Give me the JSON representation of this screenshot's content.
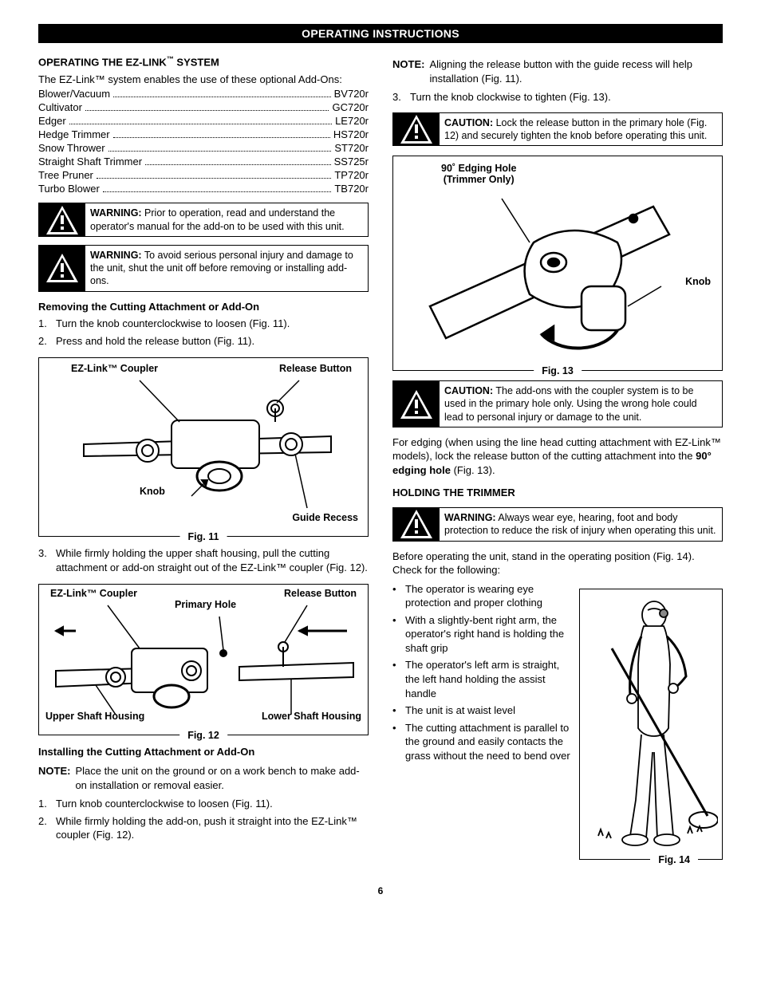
{
  "banner": "OPERATING INSTRUCTIONS",
  "page_number": "6",
  "left": {
    "h1_pre": "OPERATING THE EZ-LINK",
    "h1_suf": " SYSTEM",
    "intro": "The EZ-Link™ system enables the use of these optional Add-Ons:",
    "addons": [
      {
        "name": "Blower/Vacuum",
        "code": "BV720r"
      },
      {
        "name": "Cultivator",
        "code": "GC720r"
      },
      {
        "name": "Edger",
        "code": "LE720r"
      },
      {
        "name": "Hedge Trimmer",
        "code": "HS720r"
      },
      {
        "name": "Snow Thrower",
        "code": "ST720r"
      },
      {
        "name": "Straight Shaft Trimmer",
        "code": "SS725r"
      },
      {
        "name": "Tree Pruner",
        "code": "TP720r"
      },
      {
        "name": "Turbo Blower",
        "code": "TB720r"
      }
    ],
    "warn1_label": "WARNING:",
    "warn1_body": " Prior to operation, read and understand the operator's manual for the add-on to be used with this unit.",
    "warn2_label": "WARNING:",
    "warn2_body": " To avoid serious personal injury and damage to the unit, shut the unit off before removing or installing add-ons.",
    "remove_h": "Removing the Cutting Attachment or Add-On",
    "remove_steps": [
      "Turn the knob counterclockwise to loosen (Fig. 11).",
      "Press and hold the release button (Fig. 11)."
    ],
    "fig11": {
      "caption": "Fig. 11",
      "l_ez": "EZ-Link™ Coupler",
      "l_release": "Release Button",
      "l_knob": "Knob",
      "l_guide": "Guide Recess"
    },
    "remove_step3": "While firmly holding the upper shaft housing, pull the cutting attachment or add-on straight out of the EZ-Link™ coupler (Fig. 12).",
    "fig12": {
      "caption": "Fig. 12",
      "l_ez": "EZ-Link™ Coupler",
      "l_primary": "Primary Hole",
      "l_release": "Release Button",
      "l_upper": "Upper Shaft Housing",
      "l_lower": "Lower Shaft Housing"
    },
    "install_h": "Installing the Cutting Attachment or Add-On",
    "install_note_label": "NOTE:",
    "install_note": "Place the unit on the ground or on a work bench to make add-on installation or removal easier.",
    "install_steps": [
      "Turn knob counterclockwise to loosen (Fig. 11).",
      "While firmly holding the add-on, push it straight into the EZ-Link™ coupler (Fig. 12)."
    ]
  },
  "right": {
    "note1_label": "NOTE:",
    "note1": "Aligning the release button with the guide recess will help installation (Fig. 11).",
    "step3": "Turn the knob clockwise to tighten (Fig. 13).",
    "caution1_label": "CAUTION:",
    "caution1_body": " Lock the release button in the primary hole (Fig. 12) and securely tighten the knob before operating this unit.",
    "fig13": {
      "caption": "Fig. 13",
      "l_edging": "90˚ Edging Hole\n(Trimmer Only)",
      "l_knob": "Knob"
    },
    "caution2_label": "CAUTION:",
    "caution2_body": " The add-ons with the coupler system is to be used in the primary hole only. Using the wrong hole could lead to personal injury or damage to the unit.",
    "edging_p1": "For edging (when using the line head cutting attachment with EZ-Link™ models), lock the release button of the cutting attachment into the ",
    "edging_b": "90° edging hole",
    "edging_p2": " (Fig. 13).",
    "holding_h": "HOLDING THE TRIMMER",
    "warn3_label": "WARNING:",
    "warn3_body": " Always wear eye, hearing, foot and body protection to reduce the risk of injury when operating this unit.",
    "before_p": "Before operating the unit, stand in the operating position (Fig. 14). Check for the following:",
    "checks": [
      "The operator is wearing eye protection and proper clothing",
      "With a slightly-bent right arm, the operator's right hand is holding the shaft grip",
      "The operator's left arm is straight, the left hand holding the assist handle",
      "The unit is at waist level",
      "The cutting attachment is parallel to the ground and easily contacts the grass without the need to bend over"
    ],
    "fig14_caption": "Fig. 14"
  }
}
